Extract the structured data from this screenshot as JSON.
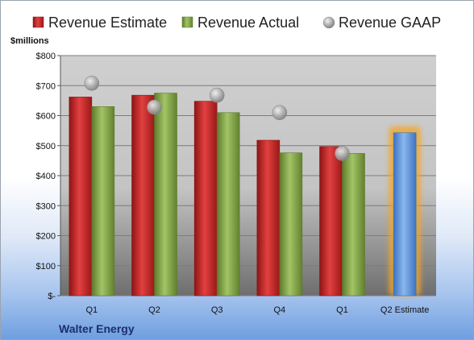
{
  "chart_data": {
    "type": "bar",
    "categories": [
      "Q1",
      "Q2",
      "Q3",
      "Q4",
      "Q1",
      "Q2 Estimate"
    ],
    "series": [
      {
        "name": "Revenue Estimate",
        "values": [
          662,
          668,
          648,
          518,
          497,
          null
        ],
        "color": "#d42a2a"
      },
      {
        "name": "Revenue Actual",
        "values": [
          630,
          675,
          610,
          476,
          474,
          null
        ],
        "color": "#86a84a"
      },
      {
        "name": "Revenue GAAP",
        "values": [
          708,
          628,
          668,
          610,
          474,
          null
        ],
        "color": "#a8a8a8",
        "marker": "circle"
      },
      {
        "name": "Q2 Estimate",
        "values": [
          null,
          null,
          null,
          null,
          null,
          543
        ],
        "color": "#5b92d8",
        "highlight": "#f5a623"
      }
    ],
    "yunit": "$millions",
    "ylim": [
      0,
      800
    ],
    "yticks": [
      0,
      100,
      200,
      300,
      400,
      500,
      600,
      700,
      800
    ],
    "ytick_labels": [
      "$-",
      "$100",
      "$200",
      "$300",
      "$400",
      "$500",
      "$600",
      "$700",
      "$800"
    ],
    "legend_position": "top",
    "grid": true,
    "plot_background": "#c8c8c8"
  },
  "legend": {
    "estimate": "Revenue Estimate",
    "actual": "Revenue Actual",
    "gaap": "Revenue GAAP"
  },
  "company": "Walter Energy"
}
